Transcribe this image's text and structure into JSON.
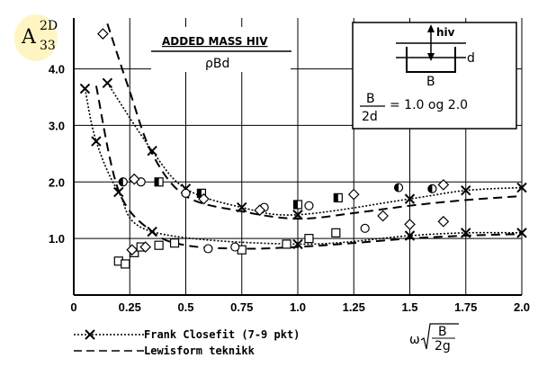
{
  "chart_data": {
    "type": "scatter",
    "title": "ADDED MASS HIV",
    "title_denominator": "ρBd",
    "ylabel_main": "A",
    "ylabel_super": "2D",
    "ylabel_sub": "33",
    "xlabel_prefix": "ω",
    "xlabel_num": "B",
    "xlabel_den": "2g",
    "xlim": [
      0,
      2.0
    ],
    "ylim": [
      0,
      4.9
    ],
    "grid": true,
    "xticks": [
      "0",
      "0.25",
      "0.5",
      "0.75",
      "1.0",
      "1.25",
      "1.5",
      "1.75",
      "2.0"
    ],
    "xtick_values": [
      0,
      0.25,
      0.5,
      0.75,
      1.0,
      1.25,
      1.5,
      1.75,
      2.0
    ],
    "yticks": [
      "1.0",
      "2.0",
      "3.0",
      "4.0"
    ],
    "ytick_values": [
      1.0,
      2.0,
      3.0,
      4.0
    ],
    "diagram": {
      "arrow_label": "hiv",
      "width_label": "B",
      "draft_label": "d"
    },
    "ratio_num": "B",
    "ratio_den": "2d",
    "ratio_value": "= 1.0 og 2.0",
    "legend": [
      {
        "label": "Frank Closefit (7-9 pkt)",
        "style": "cross-dotted"
      },
      {
        "label": "Lewisform teknikk",
        "style": "dashed"
      }
    ],
    "series": [
      {
        "style": "cross-dotted",
        "x": [
          0.05,
          0.1,
          0.2,
          0.35,
          1.0,
          1.5,
          1.75,
          2.0
        ],
        "y": [
          3.65,
          2.72,
          1.82,
          1.12,
          0.9,
          1.05,
          1.1,
          1.1
        ]
      },
      {
        "style": "cross-dotted",
        "x": [
          0.15,
          0.35,
          0.5,
          0.75,
          1.0,
          1.5,
          1.75,
          2.0
        ],
        "y": [
          3.75,
          2.55,
          1.88,
          1.55,
          1.42,
          1.7,
          1.85,
          1.9
        ]
      },
      {
        "style": "dashed",
        "x": [
          0.1,
          0.2,
          0.35,
          0.5,
          0.75,
          1.0,
          1.25,
          1.5,
          1.75,
          2.0
        ],
        "y": [
          3.7,
          1.85,
          1.12,
          0.88,
          0.82,
          0.85,
          0.92,
          1.0,
          1.05,
          1.08
        ]
      },
      {
        "style": "dashed",
        "x": [
          0.15,
          0.25,
          0.35,
          0.5,
          0.75,
          1.0,
          1.25,
          1.5,
          1.75,
          2.0
        ],
        "y": [
          4.8,
          3.6,
          2.5,
          1.75,
          1.48,
          1.35,
          1.45,
          1.58,
          1.68,
          1.75
        ]
      }
    ],
    "markers": [
      {
        "shape": "square",
        "x": 0.2,
        "y": 0.6
      },
      {
        "shape": "square",
        "x": 0.23,
        "y": 0.55
      },
      {
        "shape": "square",
        "x": 0.27,
        "y": 0.75
      },
      {
        "shape": "square",
        "x": 0.3,
        "y": 0.85
      },
      {
        "shape": "square",
        "x": 0.38,
        "y": 0.88
      },
      {
        "shape": "square",
        "x": 0.45,
        "y": 0.92
      },
      {
        "shape": "square",
        "x": 0.75,
        "y": 0.8
      },
      {
        "shape": "square",
        "x": 0.95,
        "y": 0.9
      },
      {
        "shape": "square",
        "x": 1.05,
        "y": 1.0
      },
      {
        "shape": "square",
        "x": 1.17,
        "y": 1.1
      },
      {
        "shape": "halfsquare",
        "x": 0.38,
        "y": 2.0
      },
      {
        "shape": "halfsquare",
        "x": 0.57,
        "y": 1.8
      },
      {
        "shape": "halfsquare",
        "x": 1.0,
        "y": 1.6
      },
      {
        "shape": "halfsquare",
        "x": 1.18,
        "y": 1.72
      },
      {
        "shape": "circle",
        "x": 0.3,
        "y": 2.0
      },
      {
        "shape": "circle",
        "x": 0.5,
        "y": 1.8
      },
      {
        "shape": "circle",
        "x": 0.85,
        "y": 1.55
      },
      {
        "shape": "circle",
        "x": 1.05,
        "y": 1.58
      },
      {
        "shape": "circle",
        "x": 0.6,
        "y": 0.82
      },
      {
        "shape": "circle",
        "x": 0.72,
        "y": 0.85
      },
      {
        "shape": "circle",
        "x": 1.3,
        "y": 1.18
      },
      {
        "shape": "halfcircle",
        "x": 0.22,
        "y": 2.0
      },
      {
        "shape": "halfcircle",
        "x": 1.45,
        "y": 1.9
      },
      {
        "shape": "halfcircle",
        "x": 1.6,
        "y": 1.88
      },
      {
        "shape": "diamond",
        "x": 0.13,
        "y": 4.62
      },
      {
        "shape": "diamond",
        "x": 0.27,
        "y": 2.05
      },
      {
        "shape": "diamond",
        "x": 0.58,
        "y": 1.7
      },
      {
        "shape": "diamond",
        "x": 0.83,
        "y": 1.5
      },
      {
        "shape": "diamond",
        "x": 1.25,
        "y": 1.78
      },
      {
        "shape": "diamond",
        "x": 1.38,
        "y": 1.4
      },
      {
        "shape": "diamond",
        "x": 1.5,
        "y": 1.25
      },
      {
        "shape": "diamond",
        "x": 1.65,
        "y": 1.3
      },
      {
        "shape": "diamond",
        "x": 1.65,
        "y": 1.95
      },
      {
        "shape": "diamond",
        "x": 0.26,
        "y": 0.8
      },
      {
        "shape": "diamond",
        "x": 0.32,
        "y": 0.85
      }
    ]
  }
}
